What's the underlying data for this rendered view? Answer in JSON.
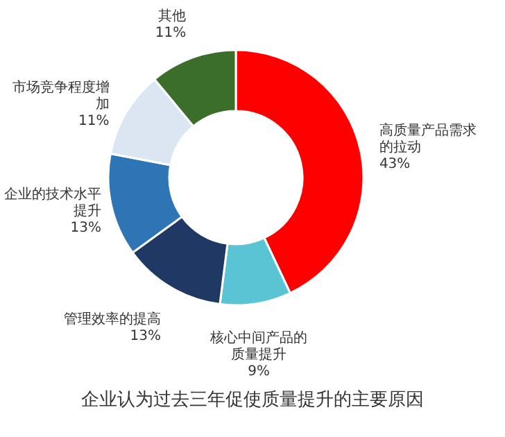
{
  "chart_data": {
    "type": "donut",
    "title": "企业认为过去三年促使质量提升的主要原因",
    "categories": [
      "高质量产品需求的拉动",
      "核心中间产品的质量提升",
      "管理效率的提高",
      "企业的技术水平提升",
      "市场竞争程度增加",
      "其他"
    ],
    "values": [
      43,
      9,
      13,
      13,
      11,
      11
    ],
    "colors": [
      "#ff0000",
      "#5bc4d4",
      "#1f3864",
      "#2e75b6",
      "#dce6f2",
      "#3b6e2a"
    ],
    "value_labels": [
      "43%",
      "9%",
      "13%",
      "13%",
      "11%",
      "11%"
    ],
    "legend": false
  }
}
